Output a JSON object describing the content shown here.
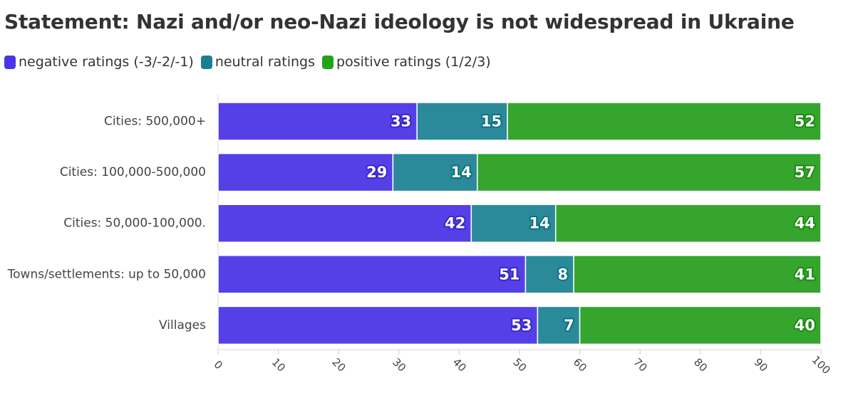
{
  "chart_data": {
    "type": "bar",
    "orientation": "horizontal",
    "stacked": true,
    "title": "Statement: Nazi and/or neo-Nazi ideology is not widespread in Ukraine",
    "categories": [
      "Cities: 500,000+",
      "Cities: 100,000-500,000",
      "Cities: 50,000-100,000.",
      "Towns/settlements: up to 50,000",
      "Villages"
    ],
    "series": [
      {
        "name": "negative ratings (-3/-2/-1)",
        "color": "#5540e8",
        "stroke": "#3a25c9",
        "values": [
          33,
          29,
          42,
          51,
          53
        ]
      },
      {
        "name": "neutral ratings",
        "color": "#2a8a9a",
        "stroke": "#0d6f7f",
        "values": [
          15,
          14,
          14,
          8,
          7
        ]
      },
      {
        "name": "positive ratings (1/2/3)",
        "color": "#36a52e",
        "stroke": "#1b8a12",
        "values": [
          52,
          57,
          44,
          41,
          40
        ]
      }
    ],
    "legend_swatch_colors": [
      "#4a36e8",
      "#1a8090",
      "#23a31a"
    ],
    "xlim": [
      0,
      100
    ],
    "xticks": [
      "0",
      "10",
      "20",
      "30",
      "40",
      "50",
      "60",
      "70",
      "80",
      "90",
      "100"
    ],
    "xlabel": "",
    "ylabel": "",
    "legend_position": "top-left"
  }
}
